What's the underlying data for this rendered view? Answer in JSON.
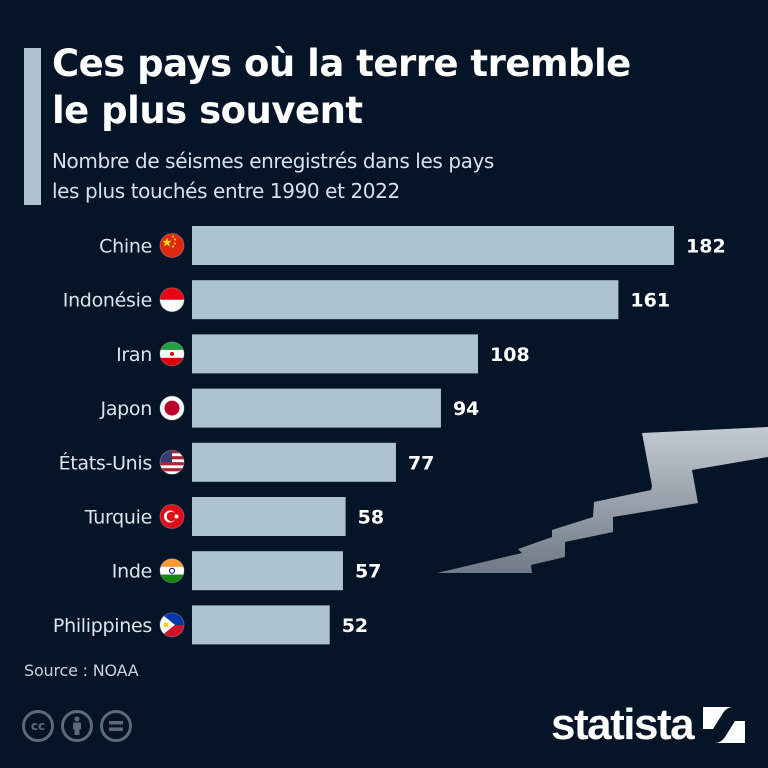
{
  "header": {
    "title_line1": "Ces pays où la terre tremble",
    "title_line2": "le plus souvent",
    "subtitle_line1": "Nombre de séismes enregistrés dans les pays",
    "subtitle_line2": "les plus touchés entre 1990 et 2022"
  },
  "colors": {
    "background": "#051426",
    "bar": "#adc3cf",
    "value_text": "#ffffff",
    "label_text": "#dde5ec"
  },
  "chart_data": {
    "type": "bar",
    "orientation": "horizontal",
    "title": "Ces pays où la terre tremble le plus souvent",
    "subtitle": "Nombre de séismes enregistrés dans les pays les plus touchés entre 1990 et 2022",
    "xlabel": "",
    "ylabel": "",
    "xlim": [
      0,
      182
    ],
    "grid": false,
    "categories": [
      "Chine",
      "Indonésie",
      "Iran",
      "Japon",
      "États-Unis",
      "Turquie",
      "Inde",
      "Philippines"
    ],
    "flags": [
      "china-flag-icon",
      "indonesia-flag-icon",
      "iran-flag-icon",
      "japan-flag-icon",
      "usa-flag-icon",
      "turkey-flag-icon",
      "india-flag-icon",
      "philippines-flag-icon"
    ],
    "values": [
      182,
      161,
      108,
      94,
      77,
      58,
      57,
      52
    ],
    "value_labels": [
      "182",
      "161",
      "108",
      "94",
      "77",
      "58",
      "57",
      "52"
    ]
  },
  "footer": {
    "source": "Source : NOAA",
    "license_icons": [
      "cc-icon",
      "attribution-icon",
      "no-derivatives-icon"
    ],
    "cc_label": "cc",
    "logo_text": "statista"
  }
}
